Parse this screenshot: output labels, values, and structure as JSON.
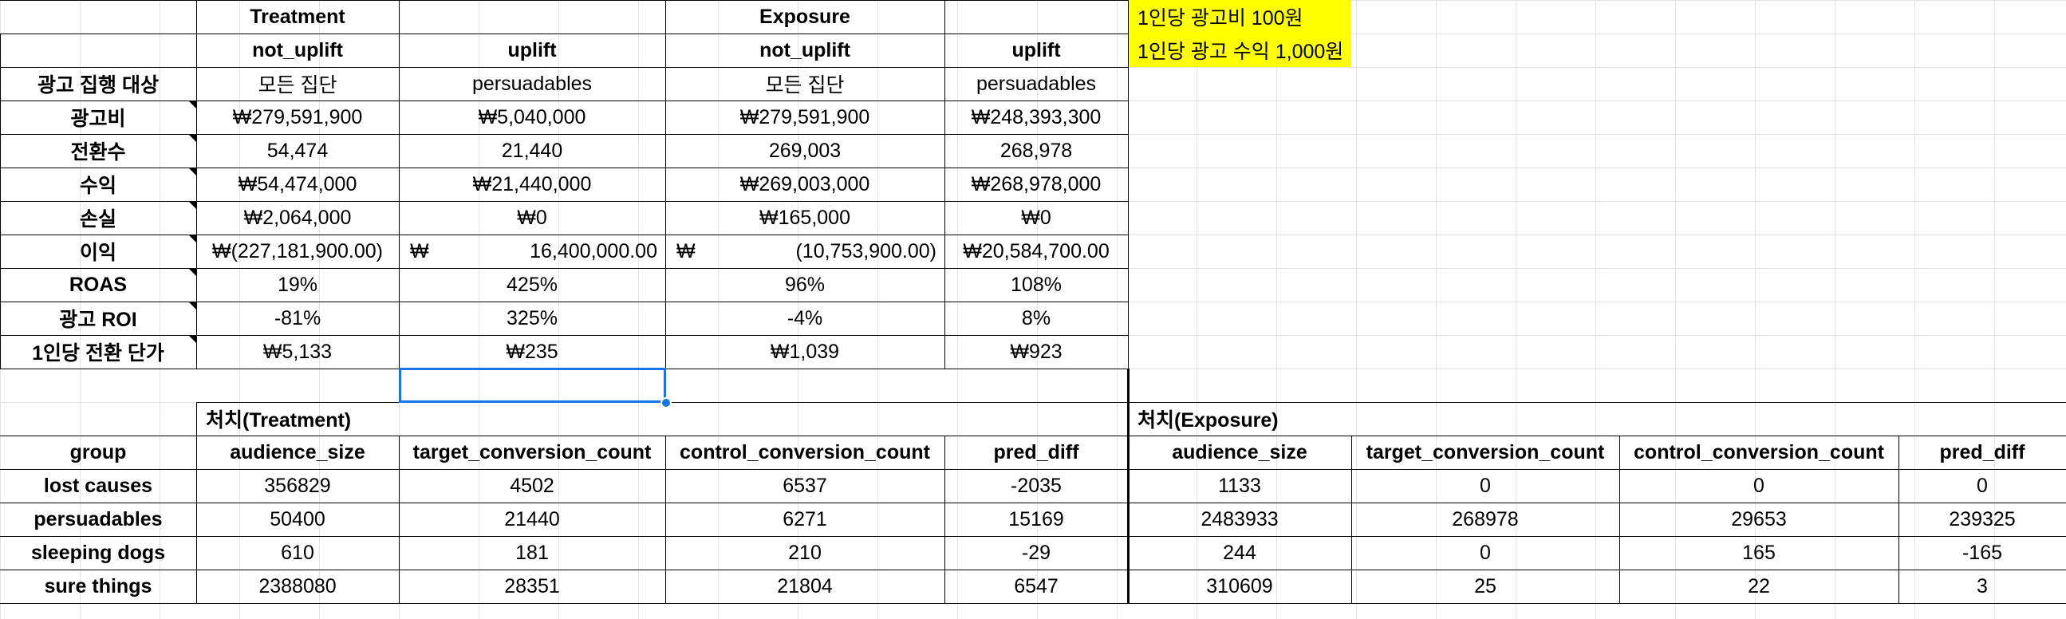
{
  "notes": [
    "1인당 광고비 100원",
    "1인당 광고 수익 1,000원"
  ],
  "summary": {
    "group_headers": [
      "Treatment",
      "",
      "Exposure",
      ""
    ],
    "sub_headers": [
      "not_uplift",
      "uplift",
      "not_uplift",
      "uplift"
    ],
    "rows": [
      {
        "label": "광고 집행 대상",
        "values": [
          "모든 집단",
          "persuadables",
          "모든 집단",
          "persuadables"
        ]
      },
      {
        "label": "광고비",
        "values": [
          "₩279,591,900",
          "₩5,040,000",
          "₩279,591,900",
          "₩248,393,300"
        ]
      },
      {
        "label": "전환수",
        "values": [
          "54,474",
          "21,440",
          "269,003",
          "268,978"
        ]
      },
      {
        "label": "수익",
        "values": [
          "₩54,474,000",
          "₩21,440,000",
          "₩269,003,000",
          "₩268,978,000"
        ]
      },
      {
        "label": "손실",
        "values": [
          "₩2,064,000",
          "₩0",
          "₩165,000",
          "₩0"
        ]
      },
      {
        "label": "이익",
        "values": [
          "₩(227,181,900.00)",
          "₩|16,400,000.00",
          "₩|(10,753,900.00)",
          "₩20,584,700.00"
        ]
      },
      {
        "label": "ROAS",
        "values": [
          "19%",
          "425%",
          "96%",
          "108%"
        ]
      },
      {
        "label": "광고 ROI",
        "values": [
          "-81%",
          "325%",
          "-4%",
          "8%"
        ]
      },
      {
        "label": "1인당 전환 단가",
        "values": [
          "₩5,133",
          "₩235",
          "₩1,039",
          "₩923"
        ]
      }
    ]
  },
  "groups_table": {
    "treatment_title": "처치(Treatment)",
    "exposure_title": "처치(Exposure)",
    "columns": [
      "group",
      "audience_size",
      "target_conversion_count",
      "control_conversion_count",
      "pred_diff",
      "audience_size",
      "target_conversion_count",
      "control_conversion_count",
      "pred_diff"
    ],
    "rows": [
      [
        "lost causes",
        "356829",
        "4502",
        "6537",
        "-2035",
        "1133",
        "0",
        "0",
        "0"
      ],
      [
        "persuadables",
        "50400",
        "21440",
        "6271",
        "15169",
        "2483933",
        "268978",
        "29653",
        "239325"
      ],
      [
        "sleeping dogs",
        "610",
        "181",
        "210",
        "-29",
        "244",
        "0",
        "165",
        "-165"
      ],
      [
        "sure things",
        "2388080",
        "28351",
        "21804",
        "6547",
        "310609",
        "25",
        "22",
        "3"
      ]
    ]
  },
  "colors": {
    "note_fill": "#ffff00",
    "selection": "#1a73e8",
    "gridline": "#e2e3e3"
  }
}
